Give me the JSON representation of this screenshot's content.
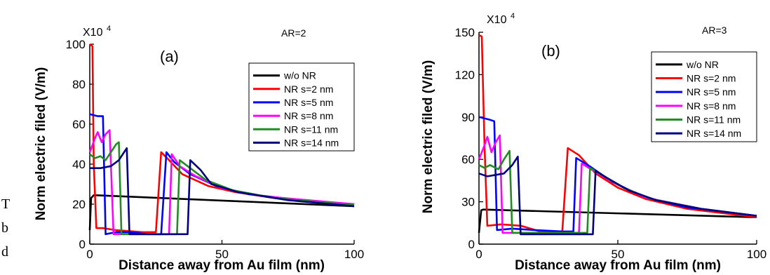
{
  "edge_text": [
    "T",
    "b",
    "d"
  ],
  "chart_data": [
    {
      "type": "line",
      "panel_label": "(a)",
      "annotation": "AR=2",
      "multiplier": "X10",
      "multiplier_exp": "4",
      "xlabel": "Distance away from Au film (nm)",
      "ylabel": "Norm electric filed (V/m)",
      "xlim": [
        0,
        100
      ],
      "ylim": [
        0,
        100
      ],
      "xticks": [
        0,
        50,
        100
      ],
      "yticks": [
        0,
        20,
        40,
        60,
        80,
        100
      ],
      "legend_position": "top-right",
      "series": [
        {
          "name": "w/o NR",
          "color": "#000000",
          "points": [
            [
              0,
              7
            ],
            [
              0.5,
              23
            ],
            [
              1.5,
              24.5
            ],
            [
              100,
              19
            ]
          ]
        },
        {
          "name": "NR s=2 nm",
          "color": "#ff0000",
          "points": [
            [
              0,
              100
            ],
            [
              1,
              99
            ],
            [
              1.5,
              40
            ],
            [
              2.5,
              8
            ],
            [
              5,
              8
            ],
            [
              10,
              7
            ],
            [
              20,
              6
            ],
            [
              25,
              6
            ],
            [
              27,
              46
            ],
            [
              30,
              42
            ],
            [
              35,
              35
            ],
            [
              45,
              29
            ],
            [
              55,
              26
            ],
            [
              70,
              23
            ],
            [
              100,
              19.5
            ]
          ]
        },
        {
          "name": "NR s=5 nm",
          "color": "#0000ff",
          "points": [
            [
              0,
              65
            ],
            [
              3,
              64
            ],
            [
              5,
              64
            ],
            [
              6,
              5
            ],
            [
              10,
              6
            ],
            [
              15,
              6
            ],
            [
              22,
              5
            ],
            [
              27,
              5
            ],
            [
              29,
              46
            ],
            [
              32,
              41
            ],
            [
              38,
              35
            ],
            [
              48,
              29
            ],
            [
              60,
              25
            ],
            [
              80,
              22
            ],
            [
              100,
              20
            ]
          ]
        },
        {
          "name": "NR s=8 nm",
          "color": "#ff00ff",
          "points": [
            [
              0,
              46
            ],
            [
              2,
              53
            ],
            [
              3,
              56
            ],
            [
              4.5,
              51
            ],
            [
              6,
              55
            ],
            [
              7.5,
              57
            ],
            [
              9,
              5
            ],
            [
              14,
              5
            ],
            [
              20,
              5
            ],
            [
              25,
              5
            ],
            [
              30,
              5
            ],
            [
              31,
              45
            ],
            [
              34,
              39
            ],
            [
              40,
              34
            ],
            [
              50,
              28
            ],
            [
              65,
              24
            ],
            [
              100,
              20
            ]
          ]
        },
        {
          "name": "NR s=11 nm",
          "color": "#228b22",
          "points": [
            [
              0,
              45
            ],
            [
              2,
              43
            ],
            [
              4,
              44
            ],
            [
              6,
              42
            ],
            [
              8,
              46
            ],
            [
              10,
              50
            ],
            [
              11,
              51
            ],
            [
              12,
              5
            ],
            [
              16,
              5
            ],
            [
              25,
              5
            ],
            [
              33,
              5
            ],
            [
              34,
              42
            ],
            [
              38,
              38
            ],
            [
              44,
              32
            ],
            [
              54,
              27
            ],
            [
              70,
              23
            ],
            [
              100,
              19.5
            ]
          ]
        },
        {
          "name": "NR s=14 nm",
          "color": "#000080",
          "points": [
            [
              0,
              38
            ],
            [
              4,
              38
            ],
            [
              8,
              39
            ],
            [
              11,
              42
            ],
            [
              13,
              46
            ],
            [
              14,
              48
            ],
            [
              15,
              5
            ],
            [
              20,
              5
            ],
            [
              30,
              5
            ],
            [
              37,
              5
            ],
            [
              38,
              42
            ],
            [
              42,
              37
            ],
            [
              46,
              30
            ],
            [
              56,
              26
            ],
            [
              75,
              22
            ],
            [
              100,
              19
            ]
          ]
        }
      ]
    },
    {
      "type": "line",
      "panel_label": "(b)",
      "annotation": "AR=3",
      "multiplier": "X10",
      "multiplier_exp": "4",
      "xlabel": "Distance away from Au film (nm)",
      "ylabel": "Norm electric filed (V/m)",
      "xlim": [
        0,
        100
      ],
      "ylim": [
        0,
        150
      ],
      "xticks": [
        0,
        50,
        100
      ],
      "yticks": [
        0,
        30,
        60,
        90,
        120,
        150
      ],
      "legend_position": "top-right",
      "series": [
        {
          "name": "w/o NR",
          "color": "#000000",
          "points": [
            [
              0,
              8
            ],
            [
              0.8,
              24
            ],
            [
              1.5,
              24.5
            ],
            [
              100,
              19
            ]
          ]
        },
        {
          "name": "NR s=2 nm",
          "color": "#ff0000",
          "points": [
            [
              0,
              148
            ],
            [
              1,
              147
            ],
            [
              2,
              70
            ],
            [
              3,
              13
            ],
            [
              8,
              14
            ],
            [
              15,
              13
            ],
            [
              22,
              9
            ],
            [
              28,
              8
            ],
            [
              30,
              9
            ],
            [
              32,
              68
            ],
            [
              36,
              63
            ],
            [
              42,
              50
            ],
            [
              50,
              40
            ],
            [
              60,
              32
            ],
            [
              75,
              25
            ],
            [
              100,
              19
            ]
          ]
        },
        {
          "name": "NR s=5 nm",
          "color": "#0000ff",
          "points": [
            [
              0,
              90
            ],
            [
              4,
              88
            ],
            [
              5.5,
              87
            ],
            [
              6.5,
              10
            ],
            [
              12,
              11
            ],
            [
              20,
              10
            ],
            [
              30,
              9
            ],
            [
              34,
              9
            ],
            [
              35,
              61
            ],
            [
              40,
              55
            ],
            [
              48,
              44
            ],
            [
              60,
              33
            ],
            [
              75,
              26
            ],
            [
              100,
              20
            ]
          ]
        },
        {
          "name": "NR s=8 nm",
          "color": "#ff00ff",
          "points": [
            [
              0,
              60
            ],
            [
              2,
              70
            ],
            [
              3,
              76
            ],
            [
              4.5,
              65
            ],
            [
              6,
              72
            ],
            [
              7.5,
              77
            ],
            [
              8.5,
              8
            ],
            [
              14,
              8
            ],
            [
              25,
              8
            ],
            [
              36,
              8
            ],
            [
              37,
              57
            ],
            [
              42,
              51
            ],
            [
              50,
              42
            ],
            [
              60,
              33
            ],
            [
              80,
              25
            ],
            [
              100,
              20
            ]
          ]
        },
        {
          "name": "NR s=11 nm",
          "color": "#228b22",
          "points": [
            [
              0,
              56
            ],
            [
              2,
              54
            ],
            [
              4,
              56
            ],
            [
              7,
              53
            ],
            [
              9,
              60
            ],
            [
              11,
              66
            ],
            [
              12,
              8
            ],
            [
              18,
              8
            ],
            [
              30,
              8
            ],
            [
              39,
              8
            ],
            [
              40,
              54
            ],
            [
              45,
              48
            ],
            [
              52,
              40
            ],
            [
              62,
              32
            ],
            [
              80,
              25
            ],
            [
              100,
              20
            ]
          ]
        },
        {
          "name": "NR s=14 nm",
          "color": "#000080",
          "points": [
            [
              0,
              50
            ],
            [
              3,
              48
            ],
            [
              6,
              49
            ],
            [
              9,
              50
            ],
            [
              12,
              56
            ],
            [
              14,
              62
            ],
            [
              15,
              7
            ],
            [
              22,
              7
            ],
            [
              32,
              7
            ],
            [
              41,
              7
            ],
            [
              42,
              52
            ],
            [
              46,
              47
            ],
            [
              54,
              38
            ],
            [
              64,
              31
            ],
            [
              80,
              25
            ],
            [
              100,
              20
            ]
          ]
        }
      ]
    }
  ]
}
